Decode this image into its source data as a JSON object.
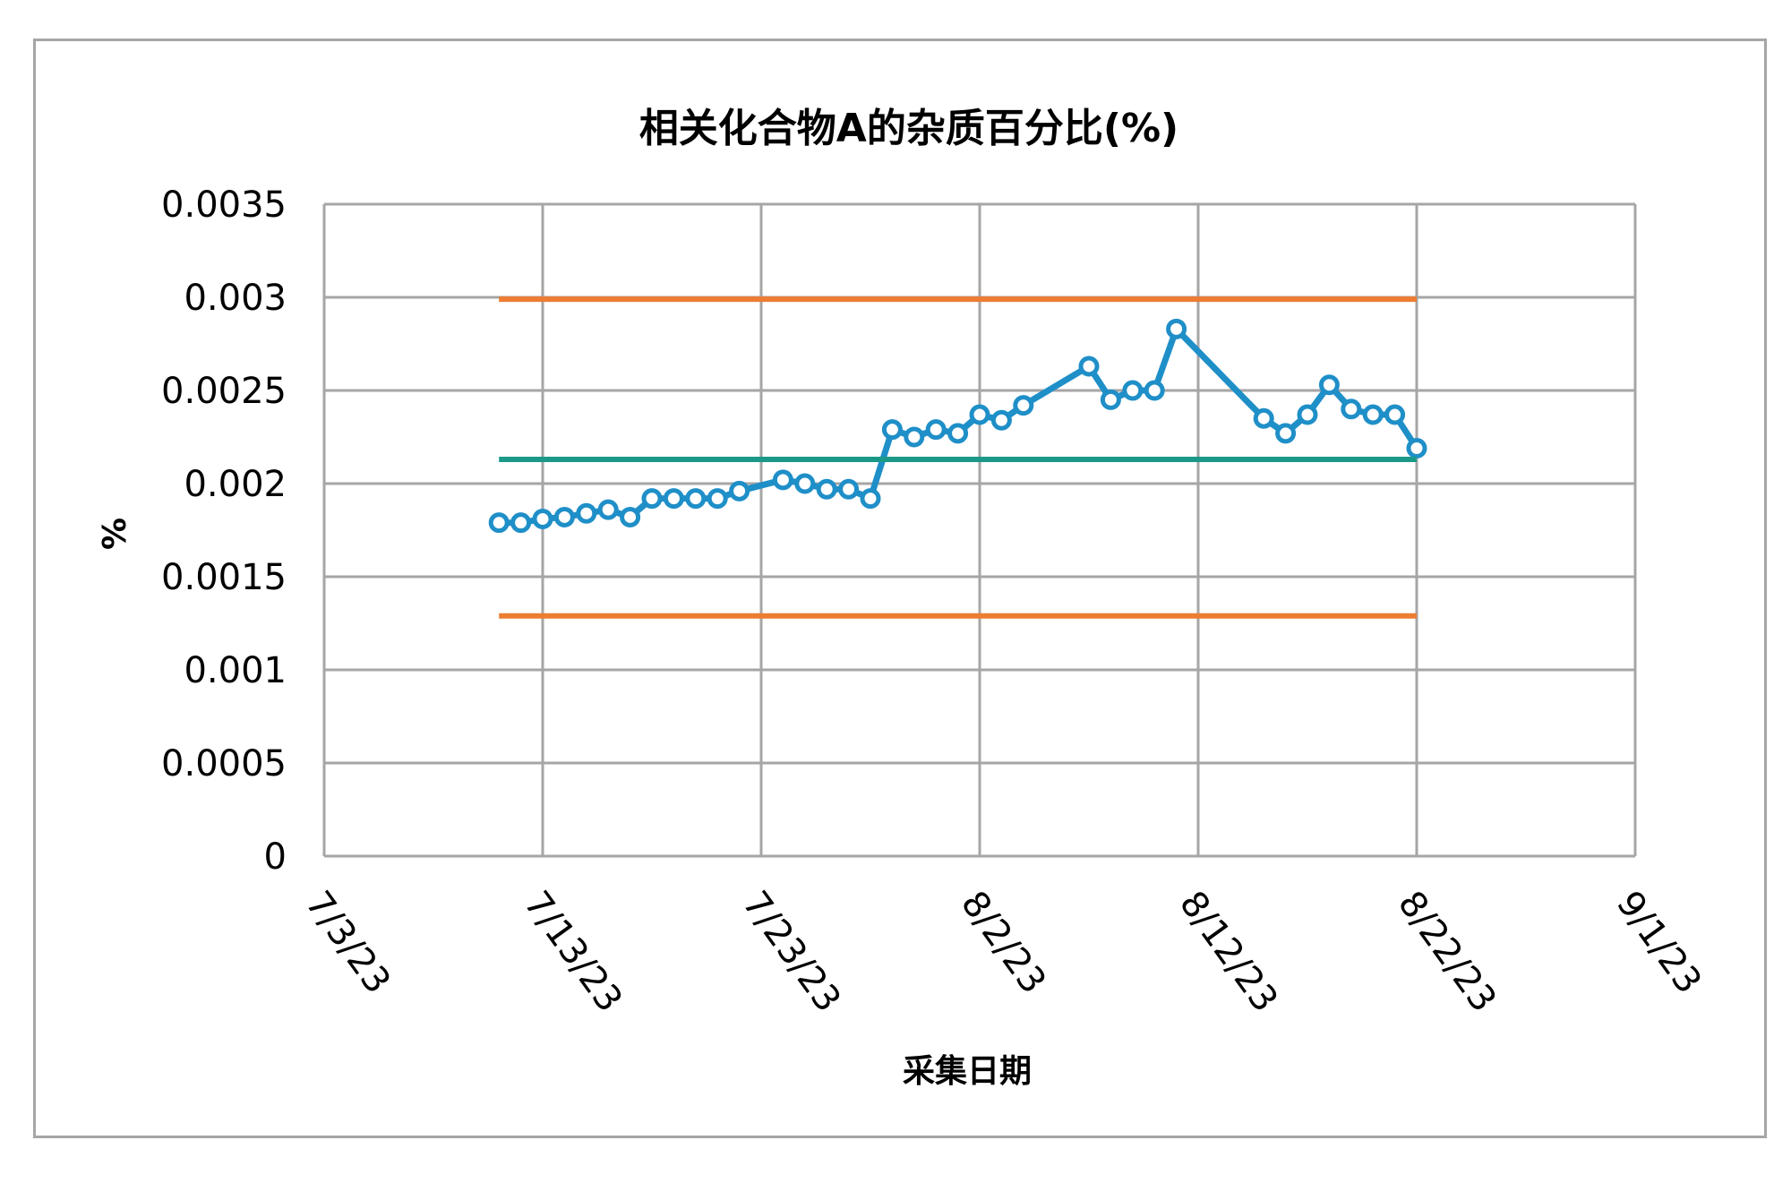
{
  "chart_data": {
    "type": "line",
    "title": "相关化合物A的杂质百分比(%)",
    "xlabel": "采集日期",
    "ylabel": "%",
    "ylim": [
      0,
      0.0035
    ],
    "y_ticks": [
      0,
      0.0005,
      0.001,
      0.0015,
      0.002,
      0.0025,
      0.003,
      0.0035
    ],
    "y_tick_labels": [
      "0",
      "0.0005",
      "0.001",
      "0.0015",
      "0.002",
      "0.0025",
      "0.003",
      "0.0035"
    ],
    "xlim": [
      "2023-07-03",
      "2023-09-01"
    ],
    "x_ticks": [
      "2023-07-03",
      "2023-07-13",
      "2023-07-23",
      "2023-08-02",
      "2023-08-12",
      "2023-08-22",
      "2023-09-01"
    ],
    "x_tick_labels": [
      "7/3/23",
      "7/13/23",
      "7/23/23",
      "8/2/23",
      "8/12/23",
      "8/22/23",
      "9/1/23"
    ],
    "grid": true,
    "series": [
      {
        "color": "#1f8fc8",
        "marker": "circle",
        "points": [
          [
            "2023-07-11",
            0.00179
          ],
          [
            "2023-07-12",
            0.00179
          ],
          [
            "2023-07-13",
            0.00181
          ],
          [
            "2023-07-14",
            0.00182
          ],
          [
            "2023-07-15",
            0.00184
          ],
          [
            "2023-07-16",
            0.00186
          ],
          [
            "2023-07-17",
            0.00182
          ],
          [
            "2023-07-18",
            0.00192
          ],
          [
            "2023-07-19",
            0.00192
          ],
          [
            "2023-07-20",
            0.00192
          ],
          [
            "2023-07-21",
            0.00192
          ],
          [
            "2023-07-22",
            0.00196
          ],
          [
            "2023-07-24",
            0.00202
          ],
          [
            "2023-07-25",
            0.002
          ],
          [
            "2023-07-26",
            0.00197
          ],
          [
            "2023-07-27",
            0.00197
          ],
          [
            "2023-07-28",
            0.00192
          ],
          [
            "2023-07-29",
            0.00229
          ],
          [
            "2023-07-30",
            0.00225
          ],
          [
            "2023-07-31",
            0.00229
          ],
          [
            "2023-08-01",
            0.00227
          ],
          [
            "2023-08-02",
            0.00237
          ],
          [
            "2023-08-03",
            0.00234
          ],
          [
            "2023-08-04",
            0.00242
          ],
          [
            "2023-08-07",
            0.00263
          ],
          [
            "2023-08-08",
            0.00245
          ],
          [
            "2023-08-09",
            0.0025
          ],
          [
            "2023-08-10",
            0.0025
          ],
          [
            "2023-08-11",
            0.00283
          ],
          [
            "2023-08-15",
            0.00235
          ],
          [
            "2023-08-16",
            0.00227
          ],
          [
            "2023-08-17",
            0.00237
          ],
          [
            "2023-08-18",
            0.00253
          ],
          [
            "2023-08-19",
            0.0024
          ],
          [
            "2023-08-20",
            0.00237
          ],
          [
            "2023-08-21",
            0.00237
          ],
          [
            "2023-08-22",
            0.00219
          ]
        ]
      },
      {
        "color": "#ed7d31",
        "marker": "none",
        "points": [
          [
            "2023-07-11",
            0.00299
          ],
          [
            "2023-08-22",
            0.00299
          ]
        ]
      },
      {
        "color": "#1a9988",
        "marker": "none",
        "points": [
          [
            "2023-07-11",
            0.00213
          ],
          [
            "2023-08-22",
            0.00213
          ]
        ]
      },
      {
        "color": "#ed7d31",
        "marker": "none",
        "points": [
          [
            "2023-07-11",
            0.00129
          ],
          [
            "2023-08-22",
            0.00129
          ]
        ]
      }
    ]
  }
}
